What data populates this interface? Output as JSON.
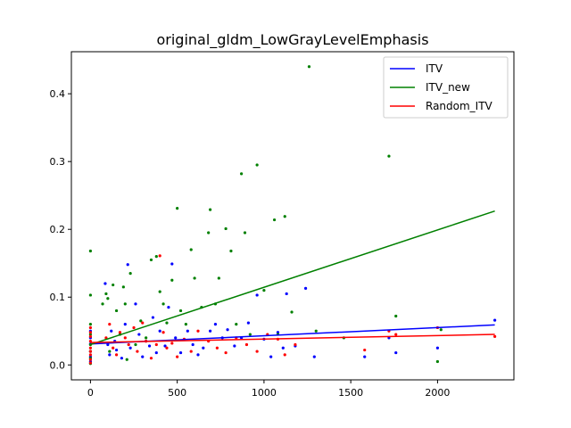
{
  "chart_data": {
    "type": "scatter",
    "title": "original_gldm_LowGrayLevelEmphasis",
    "xlabel": "",
    "ylabel": "",
    "xlim": [
      -110,
      2440
    ],
    "ylim": [
      -0.022,
      0.462
    ],
    "xticks": [
      0,
      500,
      1000,
      1500,
      2000
    ],
    "xtick_labels": [
      "0",
      "500",
      "1000",
      "1500",
      "2000"
    ],
    "yticks": [
      0.0,
      0.1,
      0.2,
      0.3,
      0.4
    ],
    "ytick_labels": [
      "0.0",
      "0.1",
      "0.2",
      "0.3",
      "0.4"
    ],
    "grid": false,
    "legend_position": "top-right",
    "series": [
      {
        "name": "ITV",
        "color": "#0000ff",
        "trend": [
          [
            0,
            0.031
          ],
          [
            2330,
            0.059
          ]
        ],
        "points": [
          [
            0,
            0.031
          ],
          [
            0,
            0.02
          ],
          [
            0,
            0.05
          ],
          [
            0,
            0.012
          ],
          [
            0,
            0.04
          ],
          [
            0,
            0.005
          ],
          [
            85,
            0.12
          ],
          [
            100,
            0.03
          ],
          [
            110,
            0.015
          ],
          [
            120,
            0.05
          ],
          [
            140,
            0.035
          ],
          [
            150,
            0.022
          ],
          [
            180,
            0.01
          ],
          [
            200,
            0.06
          ],
          [
            215,
            0.148
          ],
          [
            230,
            0.025
          ],
          [
            260,
            0.09
          ],
          [
            280,
            0.045
          ],
          [
            300,
            0.012
          ],
          [
            320,
            0.035
          ],
          [
            340,
            0.028
          ],
          [
            360,
            0.07
          ],
          [
            380,
            0.018
          ],
          [
            400,
            0.05
          ],
          [
            430,
            0.028
          ],
          [
            450,
            0.085
          ],
          [
            470,
            0.149
          ],
          [
            490,
            0.04
          ],
          [
            520,
            0.018
          ],
          [
            560,
            0.05
          ],
          [
            590,
            0.03
          ],
          [
            620,
            0.015
          ],
          [
            650,
            0.025
          ],
          [
            690,
            0.05
          ],
          [
            720,
            0.06
          ],
          [
            760,
            0.04
          ],
          [
            790,
            0.052
          ],
          [
            830,
            0.028
          ],
          [
            870,
            0.04
          ],
          [
            910,
            0.062
          ],
          [
            960,
            0.103
          ],
          [
            1000,
            0.038
          ],
          [
            1040,
            0.012
          ],
          [
            1080,
            0.048
          ],
          [
            1110,
            0.025
          ],
          [
            1130,
            0.105
          ],
          [
            1180,
            0.028
          ],
          [
            1240,
            0.113
          ],
          [
            1290,
            0.012
          ],
          [
            1580,
            0.012
          ],
          [
            1720,
            0.04
          ],
          [
            1760,
            0.018
          ],
          [
            2000,
            0.025
          ],
          [
            2330,
            0.066
          ]
        ]
      },
      {
        "name": "ITV_new",
        "color": "#008000",
        "trend": [
          [
            0,
            0.03
          ],
          [
            2330,
            0.227
          ]
        ],
        "points": [
          [
            0,
            0.168
          ],
          [
            0,
            0.103
          ],
          [
            0,
            0.06
          ],
          [
            0,
            0.03
          ],
          [
            0,
            0.01
          ],
          [
            0,
            0.045
          ],
          [
            0,
            0.02
          ],
          [
            0,
            0.002
          ],
          [
            70,
            0.09
          ],
          [
            90,
            0.105
          ],
          [
            100,
            0.098
          ],
          [
            110,
            0.02
          ],
          [
            130,
            0.118
          ],
          [
            150,
            0.08
          ],
          [
            170,
            0.045
          ],
          [
            190,
            0.115
          ],
          [
            200,
            0.09
          ],
          [
            210,
            0.008
          ],
          [
            230,
            0.135
          ],
          [
            260,
            0.03
          ],
          [
            290,
            0.065
          ],
          [
            320,
            0.04
          ],
          [
            350,
            0.155
          ],
          [
            380,
            0.16
          ],
          [
            400,
            0.108
          ],
          [
            420,
            0.09
          ],
          [
            440,
            0.062
          ],
          [
            470,
            0.125
          ],
          [
            500,
            0.231
          ],
          [
            520,
            0.08
          ],
          [
            550,
            0.06
          ],
          [
            580,
            0.17
          ],
          [
            600,
            0.128
          ],
          [
            640,
            0.085
          ],
          [
            680,
            0.195
          ],
          [
            690,
            0.229
          ],
          [
            720,
            0.09
          ],
          [
            740,
            0.128
          ],
          [
            780,
            0.201
          ],
          [
            810,
            0.168
          ],
          [
            840,
            0.06
          ],
          [
            870,
            0.282
          ],
          [
            890,
            0.195
          ],
          [
            920,
            0.045
          ],
          [
            960,
            0.295
          ],
          [
            1000,
            0.11
          ],
          [
            1060,
            0.214
          ],
          [
            1080,
            0.045
          ],
          [
            1120,
            0.219
          ],
          [
            1160,
            0.078
          ],
          [
            1260,
            0.44
          ],
          [
            1300,
            0.05
          ],
          [
            1460,
            0.04
          ],
          [
            1720,
            0.308
          ],
          [
            1760,
            0.072
          ],
          [
            2000,
            0.005
          ],
          [
            2020,
            0.052
          ]
        ]
      },
      {
        "name": "Random_ITV",
        "color": "#ff0000",
        "trend": [
          [
            0,
            0.033
          ],
          [
            2330,
            0.045
          ]
        ],
        "points": [
          [
            0,
            0.035
          ],
          [
            0,
            0.055
          ],
          [
            0,
            0.048
          ],
          [
            0,
            0.025
          ],
          [
            0,
            0.015
          ],
          [
            0,
            0.008
          ],
          [
            0,
            0.042
          ],
          [
            0,
            0.02
          ],
          [
            0,
            0.003
          ],
          [
            90,
            0.04
          ],
          [
            110,
            0.06
          ],
          [
            130,
            0.025
          ],
          [
            150,
            0.015
          ],
          [
            170,
            0.048
          ],
          [
            200,
            0.04
          ],
          [
            220,
            0.03
          ],
          [
            250,
            0.055
          ],
          [
            270,
            0.02
          ],
          [
            300,
            0.062
          ],
          [
            320,
            0.035
          ],
          [
            350,
            0.01
          ],
          [
            380,
            0.03
          ],
          [
            400,
            0.161
          ],
          [
            420,
            0.048
          ],
          [
            440,
            0.025
          ],
          [
            470,
            0.032
          ],
          [
            500,
            0.012
          ],
          [
            540,
            0.038
          ],
          [
            580,
            0.02
          ],
          [
            620,
            0.05
          ],
          [
            680,
            0.035
          ],
          [
            730,
            0.025
          ],
          [
            780,
            0.018
          ],
          [
            840,
            0.04
          ],
          [
            900,
            0.03
          ],
          [
            960,
            0.02
          ],
          [
            1020,
            0.045
          ],
          [
            1080,
            0.038
          ],
          [
            1120,
            0.015
          ],
          [
            1180,
            0.03
          ],
          [
            1580,
            0.022
          ],
          [
            1720,
            0.05
          ],
          [
            1760,
            0.045
          ],
          [
            2000,
            0.055
          ],
          [
            2330,
            0.042
          ]
        ]
      }
    ]
  }
}
